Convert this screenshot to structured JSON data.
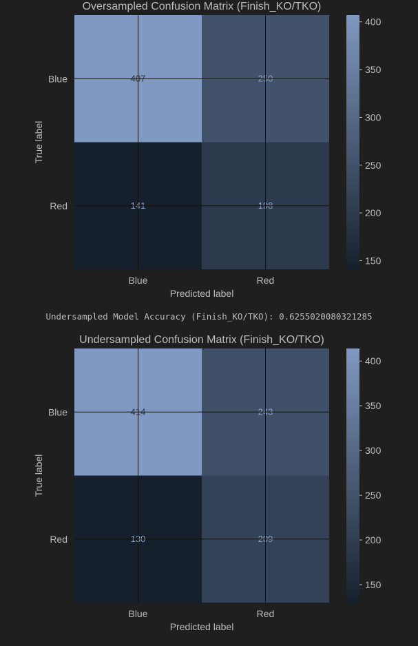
{
  "output_text": "Undersampled Model Accuracy (Finish_KO/TKO): 0.6255020080321285",
  "theme": {
    "background": "#1f1f1f",
    "text": "#bdbdbd",
    "cmap_low": "#16202d",
    "cmap_high": "#8099c2",
    "grid": "#111111"
  },
  "chart_data": [
    {
      "type": "heatmap",
      "title": "Oversampled Confusion Matrix (Finish_KO/TKO)",
      "xlabel": "Predicted label",
      "ylabel": "True label",
      "x_categories": [
        "Blue",
        "Red"
      ],
      "y_categories": [
        "Blue",
        "Red"
      ],
      "values": [
        [
          407,
          250
        ],
        [
          141,
          198
        ]
      ],
      "colorbar": {
        "min": 141,
        "max": 407,
        "ticks": [
          150,
          200,
          250,
          300,
          350,
          400
        ]
      },
      "grid": true
    },
    {
      "type": "heatmap",
      "title": "Undersampled Confusion Matrix (Finish_KO/TKO)",
      "xlabel": "Predicted label",
      "ylabel": "True label",
      "x_categories": [
        "Blue",
        "Red"
      ],
      "y_categories": [
        "Blue",
        "Red"
      ],
      "values": [
        [
          414,
          243
        ],
        [
          130,
          209
        ]
      ],
      "colorbar": {
        "min": 130,
        "max": 414,
        "ticks": [
          150,
          200,
          250,
          300,
          350,
          400
        ]
      },
      "grid": true
    }
  ]
}
